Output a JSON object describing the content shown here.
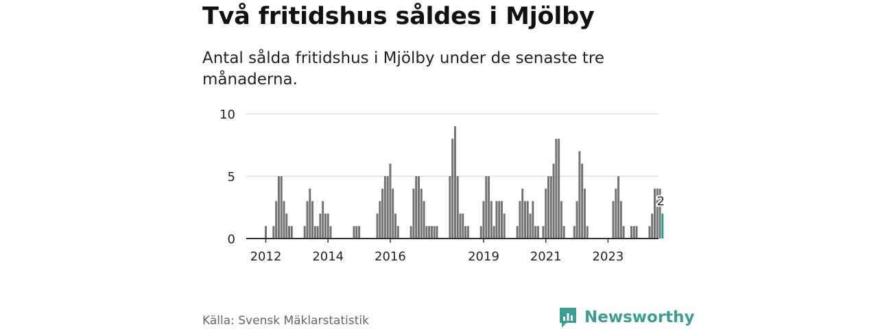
{
  "title": "Två fritidshus såldes i Mjölby",
  "subtitle": "Antal sålda fritidshus i Mjölby under de senaste tre månaderna.",
  "source": "Källa: Svensk Mäklarstatistik",
  "brand": "Newsworthy",
  "colors": {
    "bar": "#737373",
    "highlight": "#2a9d8f",
    "grid": "#d9d9d9",
    "axis": "#333333",
    "brand": "#3b9e93"
  },
  "chart_data": {
    "type": "bar",
    "title": "Två fritidshus såldes i Mjölby",
    "ylabel": "",
    "ylim": [
      0,
      10
    ],
    "yticks": [
      0,
      5,
      10
    ],
    "grid": true,
    "xticks": [
      "2012",
      "2014",
      "2016",
      "2019",
      "2021",
      "2023"
    ],
    "xtick_months": [
      "2012-01",
      "2014-01",
      "2016-01",
      "2019-01",
      "2021-01",
      "2023-01"
    ],
    "highlight_label": "2",
    "series": [
      {
        "start": "2012-01",
        "values": [
          1,
          0,
          0,
          1,
          3,
          5,
          5,
          3,
          2,
          1,
          1,
          0,
          0,
          0,
          0,
          1,
          3,
          4,
          3,
          1,
          1,
          2,
          3,
          2,
          2,
          1,
          0,
          0,
          0,
          0,
          0,
          0,
          0,
          0,
          1,
          1,
          1,
          0,
          0,
          0,
          0,
          0,
          0,
          2,
          3,
          4,
          5,
          5,
          6,
          4,
          2,
          1,
          0,
          0,
          0,
          0,
          1,
          4,
          5,
          5,
          4,
          3,
          1,
          1,
          1,
          1,
          1,
          0,
          0,
          0,
          0,
          5,
          8,
          9,
          5,
          2,
          2,
          1,
          1,
          0,
          0,
          0,
          0,
          1,
          3,
          5,
          5,
          3,
          1,
          3,
          3,
          3,
          2,
          0,
          0,
          0,
          0,
          1,
          3,
          4,
          3,
          3,
          2,
          3,
          1,
          1,
          0,
          1,
          4,
          5,
          5,
          6,
          8,
          8,
          3,
          1,
          0,
          0,
          0,
          1,
          3,
          7,
          6,
          4,
          1,
          0,
          0,
          0,
          0,
          0,
          0,
          0,
          0,
          0,
          3,
          4,
          5,
          3,
          1,
          0,
          0,
          1,
          1,
          1,
          0,
          0,
          0,
          0,
          1,
          2,
          4,
          4,
          4,
          2
        ]
      }
    ]
  }
}
